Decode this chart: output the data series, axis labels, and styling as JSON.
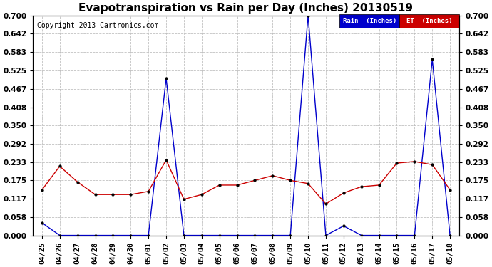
{
  "title": "Evapotranspiration vs Rain per Day (Inches) 20130519",
  "copyright": "Copyright 2013 Cartronics.com",
  "labels": [
    "04/25",
    "04/26",
    "04/27",
    "04/28",
    "04/29",
    "04/30",
    "05/01",
    "05/02",
    "05/03",
    "05/04",
    "05/05",
    "05/06",
    "05/07",
    "05/08",
    "05/09",
    "05/10",
    "05/11",
    "05/12",
    "05/13",
    "05/14",
    "05/15",
    "05/16",
    "05/17",
    "05/18"
  ],
  "rain": [
    0.04,
    0.0,
    0.0,
    0.0,
    0.0,
    0.0,
    0.0,
    0.5,
    0.0,
    0.0,
    0.0,
    0.0,
    0.0,
    0.0,
    0.0,
    0.7,
    0.0,
    0.03,
    0.0,
    0.0,
    0.0,
    0.0,
    0.56,
    0.0
  ],
  "et": [
    0.145,
    0.22,
    0.17,
    0.13,
    0.13,
    0.13,
    0.14,
    0.24,
    0.115,
    0.13,
    0.16,
    0.16,
    0.175,
    0.19,
    0.175,
    0.165,
    0.1,
    0.135,
    0.155,
    0.16,
    0.23,
    0.235,
    0.225,
    0.145
  ],
  "ylim": [
    0.0,
    0.7
  ],
  "yticks": [
    0.0,
    0.058,
    0.117,
    0.175,
    0.233,
    0.292,
    0.35,
    0.408,
    0.467,
    0.525,
    0.583,
    0.642,
    0.7
  ],
  "rain_color": "#0000cc",
  "et_color": "#cc0000",
  "bg_color": "#ffffff",
  "grid_color": "#bbbbbb",
  "title_fontsize": 11,
  "copyright_fontsize": 7,
  "tick_fontsize": 7.5,
  "ytick_fontsize": 7.5,
  "legend_rain_label": "Rain  (Inches)",
  "legend_et_label": "ET  (Inches)",
  "legend_rain_bg": "#0000cc",
  "legend_et_bg": "#cc0000"
}
